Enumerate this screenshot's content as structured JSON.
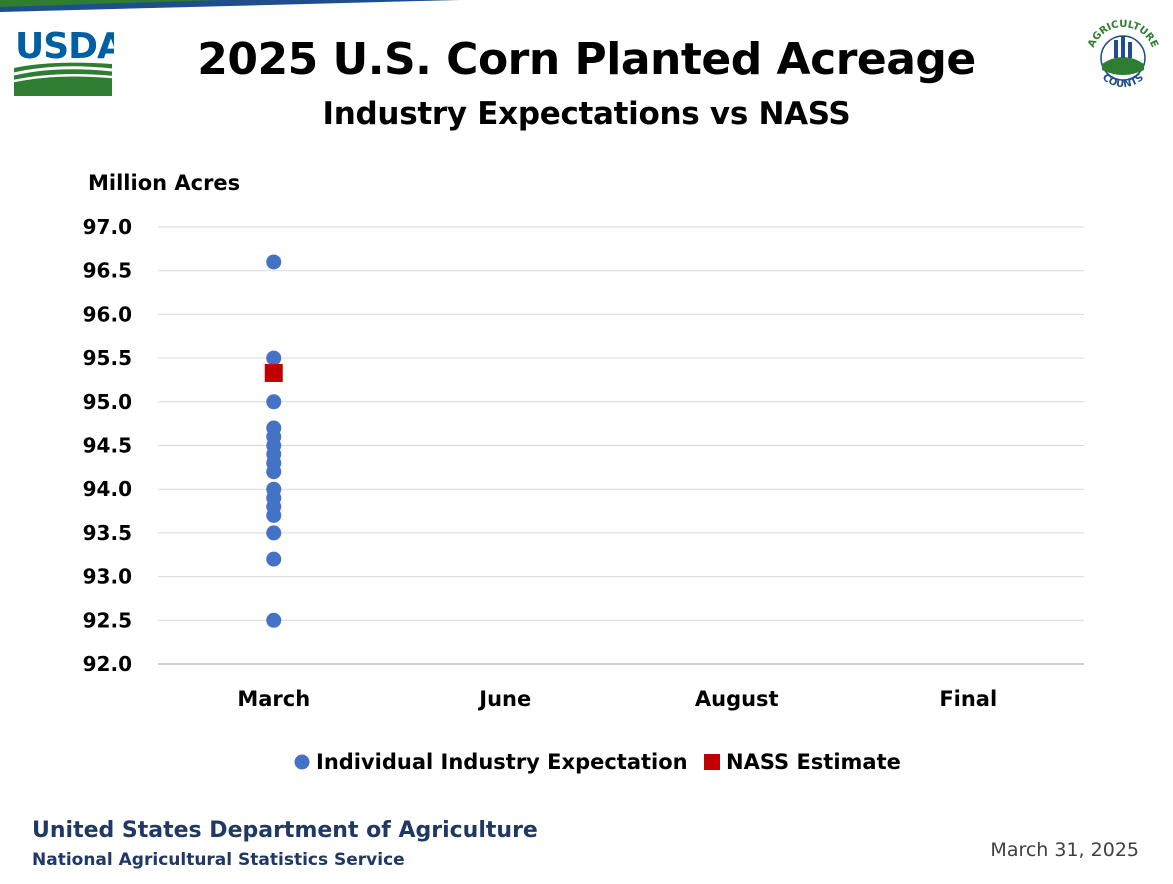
{
  "header": {
    "title": "2025 U.S. Corn Planted Acreage",
    "subtitle": "Industry Expectations vs NASS",
    "logo_left_text": "USDA",
    "logo_right_top_text": "AGRICULTURE",
    "logo_right_bottom_text": "COUNTS"
  },
  "footer": {
    "org": "United States Department of Agriculture",
    "agency": "National Agricultural Statistics Service",
    "date": "March 31, 2025"
  },
  "colors": {
    "expectation": "#4472c4",
    "nass": "#c00000",
    "gridline": "#d9d9d9",
    "axis": "#bfbfbf",
    "usda_blue": "#005ea2",
    "usda_green": "#2e7d32",
    "footer_text": "#1f3864"
  },
  "chart_data": {
    "type": "scatter",
    "ylabel": "Million Acres",
    "ylim": [
      92.0,
      97.0
    ],
    "ytick_step": 0.5,
    "categories": [
      "March",
      "June",
      "August",
      "Final"
    ],
    "grid": true,
    "legend_position": "bottom",
    "series": [
      {
        "name": "Individual Industry Expectation",
        "marker": "circle",
        "points": [
          {
            "category": "March",
            "y": 96.6
          },
          {
            "category": "March",
            "y": 95.5
          },
          {
            "category": "March",
            "y": 95.0
          },
          {
            "category": "March",
            "y": 94.7
          },
          {
            "category": "March",
            "y": 94.6
          },
          {
            "category": "March",
            "y": 94.5
          },
          {
            "category": "March",
            "y": 94.4
          },
          {
            "category": "March",
            "y": 94.3
          },
          {
            "category": "March",
            "y": 94.2
          },
          {
            "category": "March",
            "y": 94.0
          },
          {
            "category": "March",
            "y": 93.9
          },
          {
            "category": "March",
            "y": 93.8
          },
          {
            "category": "March",
            "y": 93.7
          },
          {
            "category": "March",
            "y": 93.5
          },
          {
            "category": "March",
            "y": 93.2
          },
          {
            "category": "March",
            "y": 92.5
          }
        ]
      },
      {
        "name": "NASS Estimate",
        "marker": "square",
        "points": [
          {
            "category": "March",
            "y": 95.33
          }
        ]
      }
    ]
  }
}
